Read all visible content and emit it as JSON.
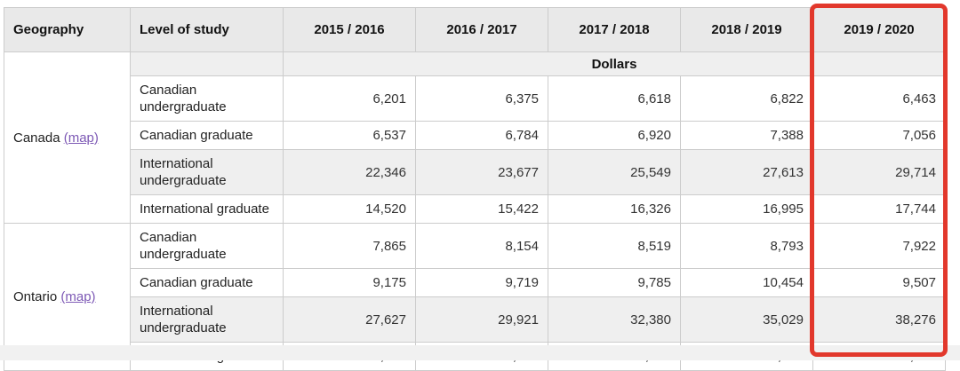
{
  "colors": {
    "header_bg": "#e9e9e9",
    "stripe_bg": "#efefef",
    "border": "#cccccc",
    "link_purple": "#7d59b5",
    "highlight_red": "#e2382c",
    "bottom_strip": "#f1f1f1"
  },
  "table": {
    "columns": [
      "Geography",
      "Level of study",
      "2015 / 2016",
      "2016 / 2017",
      "2017 / 2018",
      "2018 / 2019",
      "2019 / 2020"
    ],
    "units_label": "Dollars",
    "highlighted_column": "2019 / 2020",
    "groups": [
      {
        "geography": "Canada",
        "map_link": "(map)",
        "rows": [
          {
            "level": "Canadian undergraduate",
            "shaded": false,
            "values": [
              "6,201",
              "6,375",
              "6,618",
              "6,822",
              "6,463"
            ]
          },
          {
            "level": "Canadian graduate",
            "shaded": false,
            "values": [
              "6,537",
              "6,784",
              "6,920",
              "7,388",
              "7,056"
            ]
          },
          {
            "level": "International undergraduate",
            "shaded": true,
            "values": [
              "22,346",
              "23,677",
              "25,549",
              "27,613",
              "29,714"
            ]
          },
          {
            "level": "International graduate",
            "shaded": false,
            "values": [
              "14,520",
              "15,422",
              "16,326",
              "16,995",
              "17,744"
            ]
          }
        ]
      },
      {
        "geography": "Ontario",
        "map_link": "(map)",
        "rows": [
          {
            "level": "Canadian undergraduate",
            "shaded": false,
            "values": [
              "7,865",
              "8,154",
              "8,519",
              "8,793",
              "7,922"
            ]
          },
          {
            "level": "Canadian graduate",
            "shaded": false,
            "values": [
              "9,175",
              "9,719",
              "9,785",
              "10,454",
              "9,507"
            ]
          },
          {
            "level": "International undergraduate",
            "shaded": true,
            "values": [
              "27,627",
              "29,921",
              "32,380",
              "35,029",
              "38,276"
            ]
          },
          {
            "level": "International graduate",
            "shaded": false,
            "values": [
              "19,928",
              "21,263",
              "22,226",
              "22,527",
              "23,770"
            ]
          }
        ]
      }
    ]
  }
}
